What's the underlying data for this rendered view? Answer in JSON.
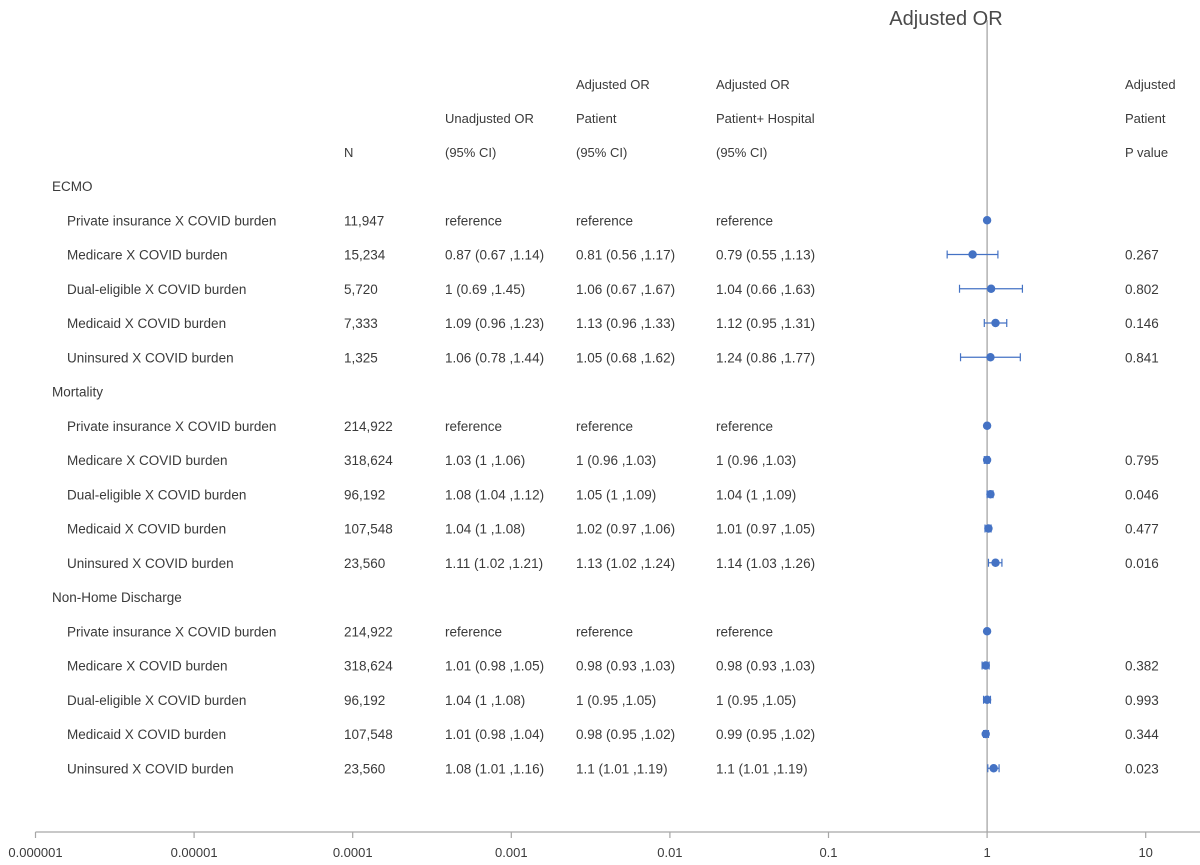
{
  "chart_data": {
    "type": "forest",
    "title": "Adjusted OR",
    "x_scale": "log",
    "x_ticks": [
      "0.000001",
      "0.00001",
      "0.0001",
      "0.001",
      "0.01",
      "0.1",
      "1",
      "10"
    ],
    "xlim": [
      1e-06,
      10
    ],
    "reference_line": 1,
    "columns": {
      "n": [
        "N"
      ],
      "unadjusted": [
        "Unadjusted OR",
        "(95% CI)"
      ],
      "adj_patient": [
        "Adjusted OR",
        "Patient",
        "(95% CI)"
      ],
      "adj_patient_hospital": [
        "Adjusted OR",
        "Patient+ Hospital",
        "(95% CI)"
      ],
      "p_value": [
        "Adjusted",
        "Patient",
        "P value"
      ]
    },
    "groups": [
      {
        "name": "ECMO",
        "rows": [
          {
            "label": "Private insurance X COVID burden",
            "n": "11,947",
            "unadjusted": "reference",
            "adj_patient": "reference",
            "adj_patient_hospital": "reference",
            "p": "",
            "or": 1,
            "lo": 1,
            "hi": 1
          },
          {
            "label": "Medicare X COVID burden",
            "n": "15,234",
            "unadjusted": "0.87 (0.67 ,1.14)",
            "adj_patient": "0.81 (0.56 ,1.17)",
            "adj_patient_hospital": "0.79 (0.55 ,1.13)",
            "p": "0.267",
            "or": 0.81,
            "lo": 0.56,
            "hi": 1.17
          },
          {
            "label": "Dual-eligible X COVID burden",
            "n": "5,720",
            "unadjusted": "1 (0.69 ,1.45)",
            "adj_patient": "1.06 (0.67 ,1.67)",
            "adj_patient_hospital": "1.04 (0.66 ,1.63)",
            "p": "0.802",
            "or": 1.06,
            "lo": 0.67,
            "hi": 1.67
          },
          {
            "label": "Medicaid X COVID burden",
            "n": "7,333",
            "unadjusted": "1.09 (0.96 ,1.23)",
            "adj_patient": "1.13 (0.96 ,1.33)",
            "adj_patient_hospital": "1.12 (0.95 ,1.31)",
            "p": "0.146",
            "or": 1.13,
            "lo": 0.96,
            "hi": 1.33
          },
          {
            "label": "Uninsured X COVID burden",
            "n": "1,325",
            "unadjusted": "1.06 (0.78 ,1.44)",
            "adj_patient": "1.05 (0.68 ,1.62)",
            "adj_patient_hospital": "1.24 (0.86 ,1.77)",
            "p": "0.841",
            "or": 1.05,
            "lo": 0.68,
            "hi": 1.62
          }
        ]
      },
      {
        "name": "Mortality",
        "rows": [
          {
            "label": "Private insurance X COVID burden",
            "n": "214,922",
            "unadjusted": "reference",
            "adj_patient": "reference",
            "adj_patient_hospital": "reference",
            "p": "",
            "or": 1,
            "lo": 1,
            "hi": 1
          },
          {
            "label": "Medicare X COVID burden",
            "n": "318,624",
            "unadjusted": "1.03 (1 ,1.06)",
            "adj_patient": "1 (0.96 ,1.03)",
            "adj_patient_hospital": "1 (0.96 ,1.03)",
            "p": "0.795",
            "or": 1,
            "lo": 0.96,
            "hi": 1.03
          },
          {
            "label": "Dual-eligible X COVID burden",
            "n": "96,192",
            "unadjusted": "1.08 (1.04 ,1.12)",
            "adj_patient": "1.05 (1 ,1.09)",
            "adj_patient_hospital": "1.04 (1 ,1.09)",
            "p": "0.046",
            "or": 1.05,
            "lo": 1,
            "hi": 1.09
          },
          {
            "label": "Medicaid X COVID burden",
            "n": "107,548",
            "unadjusted": "1.04 (1 ,1.08)",
            "adj_patient": "1.02 (0.97 ,1.06)",
            "adj_patient_hospital": "1.01 (0.97 ,1.05)",
            "p": "0.477",
            "or": 1.02,
            "lo": 0.97,
            "hi": 1.06
          },
          {
            "label": "Uninsured X COVID burden",
            "n": "23,560",
            "unadjusted": "1.11 (1.02 ,1.21)",
            "adj_patient": "1.13 (1.02 ,1.24)",
            "adj_patient_hospital": "1.14 (1.03 ,1.26)",
            "p": "0.016",
            "or": 1.13,
            "lo": 1.02,
            "hi": 1.24
          }
        ]
      },
      {
        "name": "Non-Home Discharge",
        "rows": [
          {
            "label": "Private insurance X COVID burden",
            "n": "214,922",
            "unadjusted": "reference",
            "adj_patient": "reference",
            "adj_patient_hospital": "reference",
            "p": "",
            "or": 1,
            "lo": 1,
            "hi": 1
          },
          {
            "label": "Medicare X COVID burden",
            "n": "318,624",
            "unadjusted": "1.01 (0.98 ,1.05)",
            "adj_patient": "0.98 (0.93 ,1.03)",
            "adj_patient_hospital": "0.98 (0.93 ,1.03)",
            "p": "0.382",
            "or": 0.98,
            "lo": 0.93,
            "hi": 1.03
          },
          {
            "label": "Dual-eligible X COVID burden",
            "n": "96,192",
            "unadjusted": "1.04 (1 ,1.08)",
            "adj_patient": "1 (0.95 ,1.05)",
            "adj_patient_hospital": "1 (0.95 ,1.05)",
            "p": "0.993",
            "or": 1,
            "lo": 0.95,
            "hi": 1.05
          },
          {
            "label": "Medicaid X COVID burden",
            "n": "107,548",
            "unadjusted": "1.01 (0.98 ,1.04)",
            "adj_patient": "0.98 (0.95 ,1.02)",
            "adj_patient_hospital": "0.99 (0.95 ,1.02)",
            "p": "0.344",
            "or": 0.98,
            "lo": 0.95,
            "hi": 1.02
          },
          {
            "label": "Uninsured X COVID burden",
            "n": "23,560",
            "unadjusted": "1.08 (1.01 ,1.16)",
            "adj_patient": "1.1 (1.01 ,1.19)",
            "adj_patient_hospital": "1.1 (1.01 ,1.19)",
            "p": "0.023",
            "or": 1.1,
            "lo": 1.01,
            "hi": 1.19
          }
        ]
      }
    ],
    "colors": {
      "marker": "#4472c4",
      "axis": "#a6a6a6",
      "text": "#3a3a3a"
    }
  }
}
